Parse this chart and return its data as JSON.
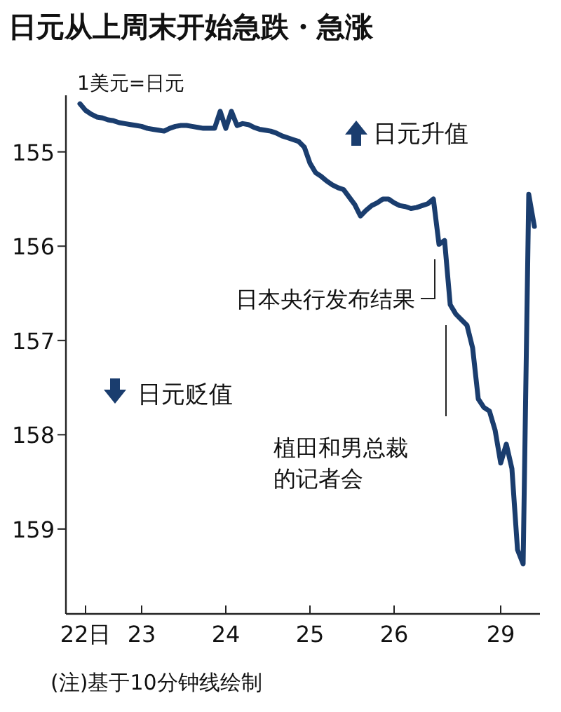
{
  "chart_data": {
    "type": "line",
    "title": "日元从上周末开始急跌・急涨",
    "ylabel": "1美元=日元",
    "categories": [
      null,
      "22日",
      null,
      null,
      null,
      null,
      null,
      null,
      null,
      null,
      null,
      "23",
      null,
      null,
      null,
      null,
      null,
      null,
      null,
      null,
      null,
      null,
      null,
      null,
      null,
      null,
      "24",
      null,
      null,
      null,
      null,
      null,
      null,
      null,
      null,
      null,
      null,
      null,
      null,
      null,
      null,
      "25",
      null,
      null,
      null,
      null,
      null,
      null,
      null,
      null,
      null,
      null,
      null,
      null,
      null,
      null,
      "26",
      null,
      null,
      null,
      null,
      null,
      null,
      null,
      null,
      null,
      null,
      null,
      null,
      null,
      null,
      null,
      null,
      null,
      null,
      "29",
      null,
      null,
      null,
      null,
      null,
      null
    ],
    "series": [
      {
        "color": "#1a3d6e",
        "values": [
          154.49,
          154.56,
          154.6,
          154.63,
          154.64,
          154.66,
          154.67,
          154.69,
          154.7,
          154.71,
          154.72,
          154.73,
          154.75,
          154.76,
          154.77,
          154.78,
          154.75,
          154.73,
          154.72,
          154.72,
          154.73,
          154.74,
          154.75,
          154.75,
          154.75,
          154.57,
          154.75,
          154.57,
          154.72,
          154.7,
          154.71,
          154.74,
          154.76,
          154.77,
          154.78,
          154.8,
          154.83,
          154.85,
          154.87,
          154.89,
          154.95,
          155.12,
          155.22,
          155.26,
          155.31,
          155.35,
          155.38,
          155.4,
          155.48,
          155.56,
          155.68,
          155.62,
          155.57,
          155.54,
          155.5,
          155.5,
          155.54,
          155.57,
          155.58,
          155.6,
          155.59,
          155.57,
          155.55,
          155.5,
          155.98,
          155.94,
          156.62,
          156.72,
          156.78,
          156.84,
          157.08,
          157.62,
          157.71,
          157.75,
          157.95,
          158.3,
          158.1,
          158.36,
          159.22,
          159.37,
          155.45,
          155.79
        ]
      }
    ],
    "ylim": [
      159.9,
      154.4
    ],
    "yticks": [
      155,
      156,
      157,
      158,
      159
    ],
    "grid": false,
    "marker": "none",
    "line_style": "solid",
    "annotations": [
      "日本央行发布结果",
      "植田和男总裁的记者会",
      "日元升值",
      "日元贬值",
      "(注)基于10分钟线绘制"
    ]
  }
}
